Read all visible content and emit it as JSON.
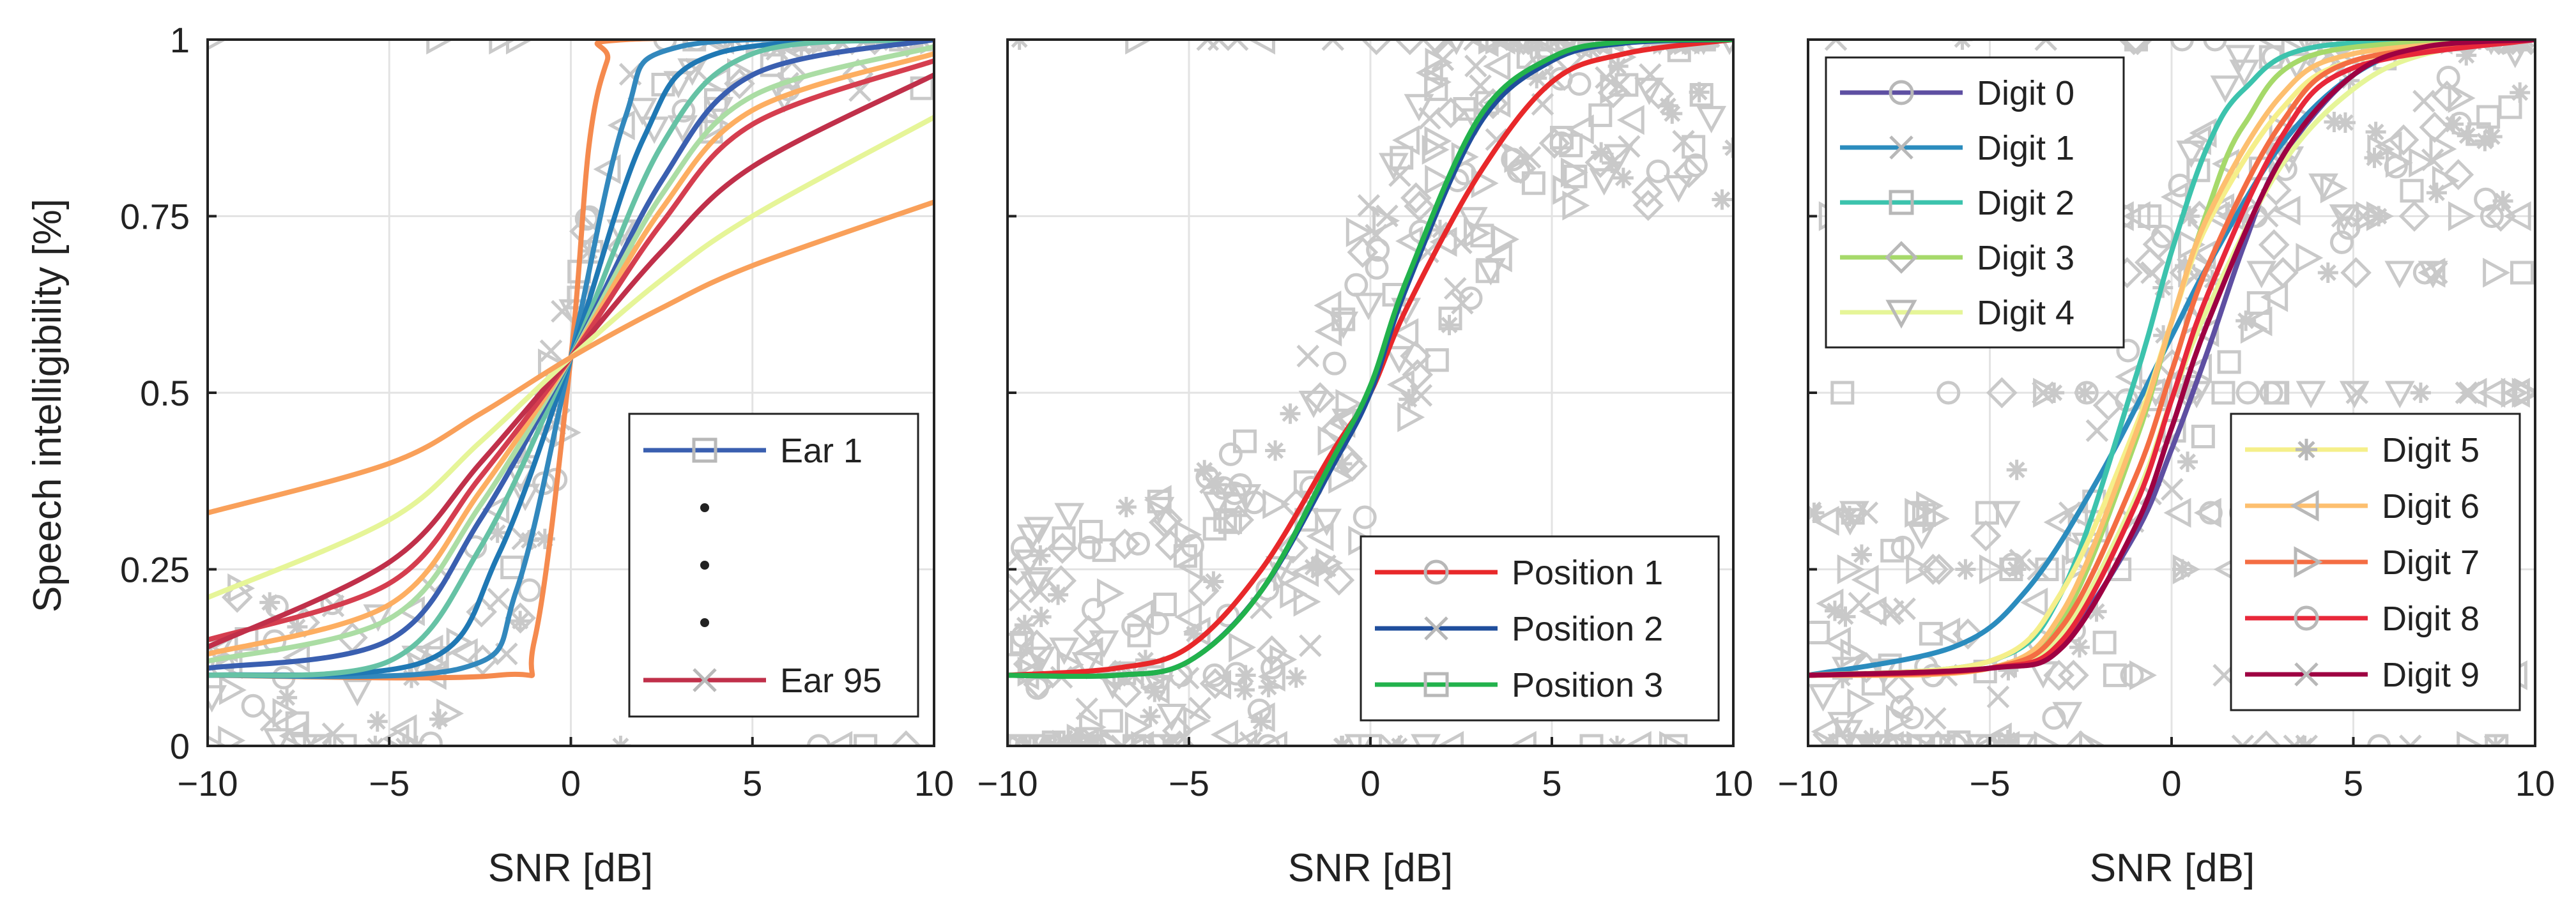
{
  "chart_data": [
    {
      "type": "line",
      "panel": "left",
      "xlabel": "SNR [dB]",
      "ylabel": "Speech intelligibility [%]",
      "xlim": [
        -10,
        10
      ],
      "ylim": [
        0,
        1
      ],
      "xticks": [
        "−10",
        "−5",
        "0",
        "5",
        "10"
      ],
      "yticks": [
        "0",
        "0.25",
        "0.5",
        "0.75",
        "1"
      ],
      "grid": true,
      "legend_position": "bottom-right",
      "legend": [
        "Ear 1",
        "•",
        "•",
        "•",
        "Ear 95"
      ],
      "legend_colors": [
        "#3a5fb0",
        "#222222",
        "#222222",
        "#222222",
        "#c0304a"
      ],
      "legend_markers": [
        "square",
        "dot",
        "dot",
        "dot",
        "cross"
      ],
      "series": [
        {
          "color": "#f58a4e",
          "values": [
            [
              -10,
              0.1
            ],
            [
              -2,
              0.1
            ],
            [
              -1,
              0.15
            ],
            [
              0,
              0.55
            ],
            [
              0.5,
              0.85
            ],
            [
              1,
              0.97
            ],
            [
              1.5,
              1.0
            ],
            [
              10,
              1.0
            ]
          ]
        },
        {
          "color": "#3288bd",
          "values": [
            [
              -10,
              0.1
            ],
            [
              -3,
              0.11
            ],
            [
              -1.5,
              0.22
            ],
            [
              0,
              0.55
            ],
            [
              1.5,
              0.89
            ],
            [
              3,
              0.99
            ],
            [
              10,
              1.0
            ]
          ]
        },
        {
          "color": "#1f78b4",
          "values": [
            [
              -10,
              0.1
            ],
            [
              -4,
              0.12
            ],
            [
              -2,
              0.27
            ],
            [
              0,
              0.55
            ],
            [
              2,
              0.86
            ],
            [
              4,
              0.98
            ],
            [
              10,
              1.0
            ]
          ]
        },
        {
          "color": "#66c2a5",
          "values": [
            [
              -10,
              0.1
            ],
            [
              -5,
              0.12
            ],
            [
              -2.5,
              0.28
            ],
            [
              0,
              0.55
            ],
            [
              2.5,
              0.85
            ],
            [
              5,
              0.98
            ],
            [
              10,
              1.0
            ]
          ]
        },
        {
          "color": "#3a5fb0",
          "values": [
            [
              -10,
              0.11
            ],
            [
              -5,
              0.15
            ],
            [
              -2.5,
              0.32
            ],
            [
              0,
              0.55
            ],
            [
              2.5,
              0.8
            ],
            [
              5,
              0.95
            ],
            [
              10,
              1.0
            ]
          ]
        },
        {
          "color": "#abdda4",
          "values": [
            [
              -10,
              0.12
            ],
            [
              -5,
              0.18
            ],
            [
              -2.5,
              0.34
            ],
            [
              0,
              0.55
            ],
            [
              2.5,
              0.78
            ],
            [
              5,
              0.92
            ],
            [
              10,
              0.99
            ]
          ]
        },
        {
          "color": "#fdae61",
          "values": [
            [
              -10,
              0.13
            ],
            [
              -5,
              0.2
            ],
            [
              -2.5,
              0.36
            ],
            [
              0,
              0.55
            ],
            [
              2.5,
              0.76
            ],
            [
              5,
              0.9
            ],
            [
              10,
              0.98
            ]
          ]
        },
        {
          "color": "#d53e4f",
          "values": [
            [
              -10,
              0.15
            ],
            [
              -5,
              0.23
            ],
            [
              -2.5,
              0.38
            ],
            [
              0,
              0.55
            ],
            [
              2.5,
              0.74
            ],
            [
              5,
              0.88
            ],
            [
              10,
              0.97
            ]
          ]
        },
        {
          "color": "#c0304a",
          "values": [
            [
              -10,
              0.14
            ],
            [
              -5,
              0.26
            ],
            [
              -2.5,
              0.4
            ],
            [
              0,
              0.55
            ],
            [
              2.5,
              0.7
            ],
            [
              5,
              0.82
            ],
            [
              10,
              0.95
            ]
          ]
        },
        {
          "color": "#e6f598",
          "values": [
            [
              -10,
              0.21
            ],
            [
              -5,
              0.32
            ],
            [
              -2.5,
              0.43
            ],
            [
              0,
              0.55
            ],
            [
              2.5,
              0.66
            ],
            [
              5,
              0.75
            ],
            [
              10,
              0.89
            ]
          ]
        },
        {
          "color": "#f9a05a",
          "values": [
            [
              -10,
              0.33
            ],
            [
              -5,
              0.4
            ],
            [
              -2.5,
              0.47
            ],
            [
              0,
              0.55
            ],
            [
              2.5,
              0.62
            ],
            [
              5,
              0.68
            ],
            [
              10,
              0.77
            ]
          ]
        }
      ]
    },
    {
      "type": "line",
      "panel": "middle",
      "xlabel": "SNR [dB]",
      "ylabel": "",
      "xlim": [
        -10,
        10
      ],
      "ylim": [
        0,
        1
      ],
      "xticks": [
        "−10",
        "−5",
        "0",
        "5",
        "10"
      ],
      "grid": true,
      "legend_position": "bottom-right",
      "series": [
        {
          "name": "Position 1",
          "color": "#e8282a",
          "marker": "circle",
          "values": [
            [
              -10,
              0.1
            ],
            [
              -7,
              0.11
            ],
            [
              -5,
              0.14
            ],
            [
              -3,
              0.25
            ],
            [
              -1,
              0.42
            ],
            [
              0,
              0.5
            ],
            [
              1,
              0.62
            ],
            [
              3,
              0.81
            ],
            [
              5,
              0.94
            ],
            [
              7,
              0.98
            ],
            [
              10,
              1.0
            ]
          ]
        },
        {
          "name": "Position 2",
          "color": "#1f4e9c",
          "marker": "cross",
          "values": [
            [
              -10,
              0.1
            ],
            [
              -7,
              0.1
            ],
            [
              -5,
              0.12
            ],
            [
              -3,
              0.22
            ],
            [
              -1,
              0.4
            ],
            [
              0,
              0.5
            ],
            [
              1,
              0.65
            ],
            [
              3,
              0.88
            ],
            [
              5,
              0.97
            ],
            [
              7,
              0.995
            ],
            [
              10,
              1.0
            ]
          ]
        },
        {
          "name": "Position 3",
          "color": "#22b24c",
          "marker": "square",
          "values": [
            [
              -10,
              0.1
            ],
            [
              -7,
              0.1
            ],
            [
              -5,
              0.12
            ],
            [
              -3,
              0.22
            ],
            [
              -1,
              0.41
            ],
            [
              0,
              0.51
            ],
            [
              1,
              0.66
            ],
            [
              3,
              0.89
            ],
            [
              5,
              0.975
            ],
            [
              7,
              0.997
            ],
            [
              10,
              1.0
            ]
          ]
        }
      ]
    },
    {
      "type": "line",
      "panel": "right",
      "xlabel": "SNR [dB]",
      "ylabel": "",
      "xlim": [
        -10,
        10
      ],
      "ylim": [
        0,
        1
      ],
      "xticks": [
        "−10",
        "−5",
        "0",
        "5",
        "10"
      ],
      "grid": true,
      "legend_position": "top-left and bottom-right",
      "series": [
        {
          "name": "Digit 0",
          "color": "#5e4fa2",
          "marker": "circle",
          "values": [
            [
              -10,
              0.1
            ],
            [
              -5,
              0.11
            ],
            [
              -3,
              0.15
            ],
            [
              -1,
              0.3
            ],
            [
              0,
              0.42
            ],
            [
              1,
              0.56
            ],
            [
              2,
              0.71
            ],
            [
              3,
              0.83
            ],
            [
              5,
              0.95
            ],
            [
              7,
              0.99
            ],
            [
              10,
              1.0
            ]
          ]
        },
        {
          "name": "Digit 1",
          "color": "#2b8cbe",
          "marker": "cross",
          "values": [
            [
              -10,
              0.1
            ],
            [
              -6,
              0.14
            ],
            [
              -4,
              0.22
            ],
            [
              -2,
              0.38
            ],
            [
              0,
              0.58
            ],
            [
              1,
              0.68
            ],
            [
              3,
              0.85
            ],
            [
              5,
              0.95
            ],
            [
              7,
              0.99
            ],
            [
              10,
              1.0
            ]
          ]
        },
        {
          "name": "Digit 2",
          "color": "#3cc3ad",
          "marker": "square",
          "values": [
            [
              -10,
              0.1
            ],
            [
              -5,
              0.12
            ],
            [
              -3,
              0.22
            ],
            [
              -1,
              0.52
            ],
            [
              0,
              0.7
            ],
            [
              1,
              0.85
            ],
            [
              2,
              0.93
            ],
            [
              4,
              0.99
            ],
            [
              10,
              1.0
            ]
          ]
        },
        {
          "name": "Digit 3",
          "color": "#a6d96a",
          "marker": "diamond",
          "values": [
            [
              -10,
              0.1
            ],
            [
              -5,
              0.11
            ],
            [
              -3,
              0.18
            ],
            [
              -1,
              0.43
            ],
            [
              0,
              0.6
            ],
            [
              1,
              0.76
            ],
            [
              2,
              0.88
            ],
            [
              4,
              0.98
            ],
            [
              10,
              1.0
            ]
          ]
        },
        {
          "name": "Digit 4",
          "color": "#e6f598",
          "marker": "triangle-down",
          "values": [
            [
              -10,
              0.1
            ],
            [
              -5,
              0.11
            ],
            [
              -3,
              0.16
            ],
            [
              -1,
              0.35
            ],
            [
              0,
              0.49
            ],
            [
              1,
              0.62
            ],
            [
              3,
              0.82
            ],
            [
              5,
              0.93
            ],
            [
              7,
              0.98
            ],
            [
              10,
              1.0
            ]
          ]
        },
        {
          "name": "Digit 5",
          "color": "#f5ef8a",
          "marker": "star",
          "values": [
            [
              -10,
              0.1
            ],
            [
              -5,
              0.12
            ],
            [
              -3,
              0.22
            ],
            [
              -1,
              0.45
            ],
            [
              0,
              0.6
            ],
            [
              1,
              0.74
            ],
            [
              3,
              0.9
            ],
            [
              5,
              0.97
            ],
            [
              10,
              1.0
            ]
          ]
        },
        {
          "name": "Digit 6",
          "color": "#fdbf6f",
          "marker": "triangle-left",
          "values": [
            [
              -10,
              0.1
            ],
            [
              -5,
              0.11
            ],
            [
              -3,
              0.19
            ],
            [
              -1,
              0.44
            ],
            [
              0,
              0.6
            ],
            [
              1,
              0.75
            ],
            [
              3,
              0.92
            ],
            [
              5,
              0.98
            ],
            [
              10,
              1.0
            ]
          ]
        },
        {
          "name": "Digit 7",
          "color": "#f46d43",
          "marker": "triangle-right",
          "values": [
            [
              -10,
              0.1
            ],
            [
              -5,
              0.11
            ],
            [
              -3,
              0.17
            ],
            [
              -1,
              0.38
            ],
            [
              0,
              0.53
            ],
            [
              1,
              0.68
            ],
            [
              3,
              0.88
            ],
            [
              5,
              0.97
            ],
            [
              10,
              1.0
            ]
          ]
        },
        {
          "name": "Digit 8",
          "color": "#e8283a",
          "marker": "circle",
          "values": [
            [
              -10,
              0.1
            ],
            [
              -5,
              0.11
            ],
            [
              -3,
              0.15
            ],
            [
              -1,
              0.34
            ],
            [
              0,
              0.49
            ],
            [
              1,
              0.64
            ],
            [
              3,
              0.86
            ],
            [
              5,
              0.96
            ],
            [
              10,
              1.0
            ]
          ]
        },
        {
          "name": "Digit 9",
          "color": "#9e0142",
          "marker": "cross",
          "values": [
            [
              -10,
              0.1
            ],
            [
              -5,
              0.11
            ],
            [
              -3,
              0.14
            ],
            [
              -1,
              0.31
            ],
            [
              0,
              0.45
            ],
            [
              1,
              0.6
            ],
            [
              3,
              0.83
            ],
            [
              5,
              0.95
            ],
            [
              7,
              0.99
            ],
            [
              10,
              1.0
            ]
          ]
        }
      ]
    }
  ]
}
